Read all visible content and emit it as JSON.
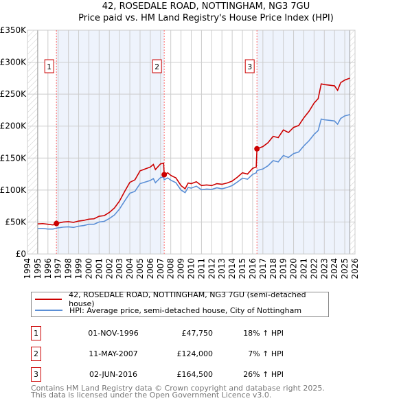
{
  "chart_data": {
    "type": "line",
    "title": "42, ROSEDALE ROAD, NOTTINGHAM, NG3 7GU",
    "subtitle": "Price paid vs. HM Land Registry's House Price Index (HPI)",
    "xlim": [
      1994,
      2026
    ],
    "ylim": [
      0,
      350000
    ],
    "x_ticks": [
      "1994",
      "1995",
      "1996",
      "1997",
      "1998",
      "1999",
      "2000",
      "2001",
      "2002",
      "2003",
      "2004",
      "2005",
      "2006",
      "2007",
      "2008",
      "2009",
      "2010",
      "2011",
      "2012",
      "2013",
      "2014",
      "2015",
      "2016",
      "2017",
      "2018",
      "2019",
      "2020",
      "2021",
      "2022",
      "2023",
      "2024",
      "2025",
      "2026"
    ],
    "y_ticks": [
      {
        "v": 0,
        "label": "£0"
      },
      {
        "v": 50000,
        "label": "£50K"
      },
      {
        "v": 100000,
        "label": "£100K"
      },
      {
        "v": 150000,
        "label": "£150K"
      },
      {
        "v": 200000,
        "label": "£200K"
      },
      {
        "v": 250000,
        "label": "£250K"
      },
      {
        "v": 300000,
        "label": "£300K"
      },
      {
        "v": 350000,
        "label": "£350K"
      }
    ],
    "grid": true,
    "series": [
      {
        "name": "42, ROSEDALE ROAD, NOTTINGHAM, NG3 7GU (semi-detached house)",
        "color": "#cc0000",
        "x": [
          1995,
          1995.5,
          1996,
          1996.5,
          1996.83,
          1997.5,
          1998,
          1998.5,
          1999,
          1999.5,
          2000,
          2000.5,
          2001,
          2001.5,
          2002,
          2002.5,
          2003,
          2003.5,
          2004,
          2004.5,
          2005,
          2005.5,
          2006,
          2006.3,
          2006.5,
          2007,
          2007.3,
          2007.36,
          2007.7,
          2008,
          2008.5,
          2009,
          2009.4,
          2009.7,
          2010,
          2010.5,
          2011,
          2011.5,
          2012,
          2012.5,
          2013,
          2013.5,
          2014,
          2014.5,
          2015,
          2015.5,
          2016,
          2016.35,
          2016.42,
          2017,
          2017.5,
          2018,
          2018.5,
          2019,
          2019.5,
          2020,
          2020.5,
          2021,
          2021.5,
          2022,
          2022.4,
          2022.7,
          2023,
          2023.5,
          2024,
          2024.3,
          2024.6,
          2025,
          2025.5
        ],
        "y": [
          47000,
          47500,
          46500,
          45500,
          47750,
          50000,
          50500,
          49500,
          51500,
          52500,
          54500,
          55000,
          59000,
          60000,
          65000,
          72000,
          83000,
          98000,
          112000,
          116000,
          130000,
          133000,
          136000,
          140000,
          132000,
          141000,
          142000,
          124000,
          127000,
          123000,
          119000,
          107000,
          102000,
          111000,
          110000,
          113000,
          107000,
          108000,
          107000,
          110000,
          109000,
          111000,
          114000,
          120000,
          127000,
          125000,
          134000,
          136000,
          164500,
          168000,
          174000,
          184000,
          182000,
          194000,
          190000,
          198000,
          201000,
          213000,
          223000,
          236000,
          243000,
          266000,
          265000,
          264000,
          263000,
          256000,
          268000,
          272000,
          275000
        ]
      },
      {
        "name": "HPI: Average price, semi-detached house, City of Nottingham",
        "color": "#5b8fd6",
        "x": [
          1995,
          1995.5,
          1996,
          1996.5,
          1996.83,
          1997.5,
          1998,
          1998.5,
          1999,
          1999.5,
          2000,
          2000.5,
          2001,
          2001.5,
          2002,
          2002.5,
          2003,
          2003.5,
          2004,
          2004.5,
          2005,
          2005.5,
          2006,
          2006.3,
          2006.5,
          2007,
          2007.3,
          2007.36,
          2007.7,
          2008,
          2008.5,
          2009,
          2009.4,
          2009.7,
          2010,
          2010.5,
          2011,
          2011.5,
          2012,
          2012.5,
          2013,
          2013.5,
          2014,
          2014.5,
          2015,
          2015.5,
          2016,
          2016.35,
          2016.42,
          2017,
          2017.5,
          2018,
          2018.5,
          2019,
          2019.5,
          2020,
          2020.5,
          2021,
          2021.5,
          2022,
          2022.4,
          2022.7,
          2023,
          2023.5,
          2024,
          2024.3,
          2024.6,
          2025,
          2025.5
        ],
        "y": [
          40000,
          40000,
          39000,
          39000,
          40500,
          42000,
          42500,
          41500,
          43500,
          44500,
          46500,
          46500,
          50000,
          51000,
          55500,
          61000,
          70500,
          83000,
          95000,
          98000,
          110000,
          112500,
          115000,
          118000,
          111500,
          119500,
          120500,
          116000,
          119000,
          115500,
          111500,
          100000,
          96000,
          104000,
          103000,
          106000,
          100500,
          101500,
          101000,
          103500,
          102000,
          104000,
          107000,
          112500,
          118500,
          117000,
          124500,
          127000,
          130500,
          133000,
          138000,
          146000,
          144000,
          154000,
          151000,
          157000,
          159500,
          169000,
          177000,
          187000,
          193000,
          211000,
          210000,
          209000,
          208000,
          203000,
          212000,
          216000,
          218000
        ]
      }
    ],
    "sales": [
      {
        "n": "1",
        "x": 1996.83,
        "y": 47750
      },
      {
        "n": "2",
        "x": 2007.36,
        "y": 124000
      },
      {
        "n": "3",
        "x": 2016.42,
        "y": 164500
      }
    ]
  },
  "legend": {
    "property": "42, ROSEDALE ROAD, NOTTINGHAM, NG3 7GU (semi-detached house)",
    "hpi": "HPI: Average price, semi-detached house, City of Nottingham"
  },
  "transactions": [
    {
      "n": "1",
      "date": "01-NOV-1996",
      "price": "£47,750",
      "hpi": "18% ↑ HPI"
    },
    {
      "n": "2",
      "date": "11-MAY-2007",
      "price": "£124,000",
      "hpi": "7% ↑ HPI"
    },
    {
      "n": "3",
      "date": "02-JUN-2016",
      "price": "£164,500",
      "hpi": "26% ↑ HPI"
    }
  ],
  "footer": {
    "line1": "Contains HM Land Registry data © Crown copyright and database right 2025.",
    "line2": "This data is licensed under the Open Government Licence v3.0."
  }
}
